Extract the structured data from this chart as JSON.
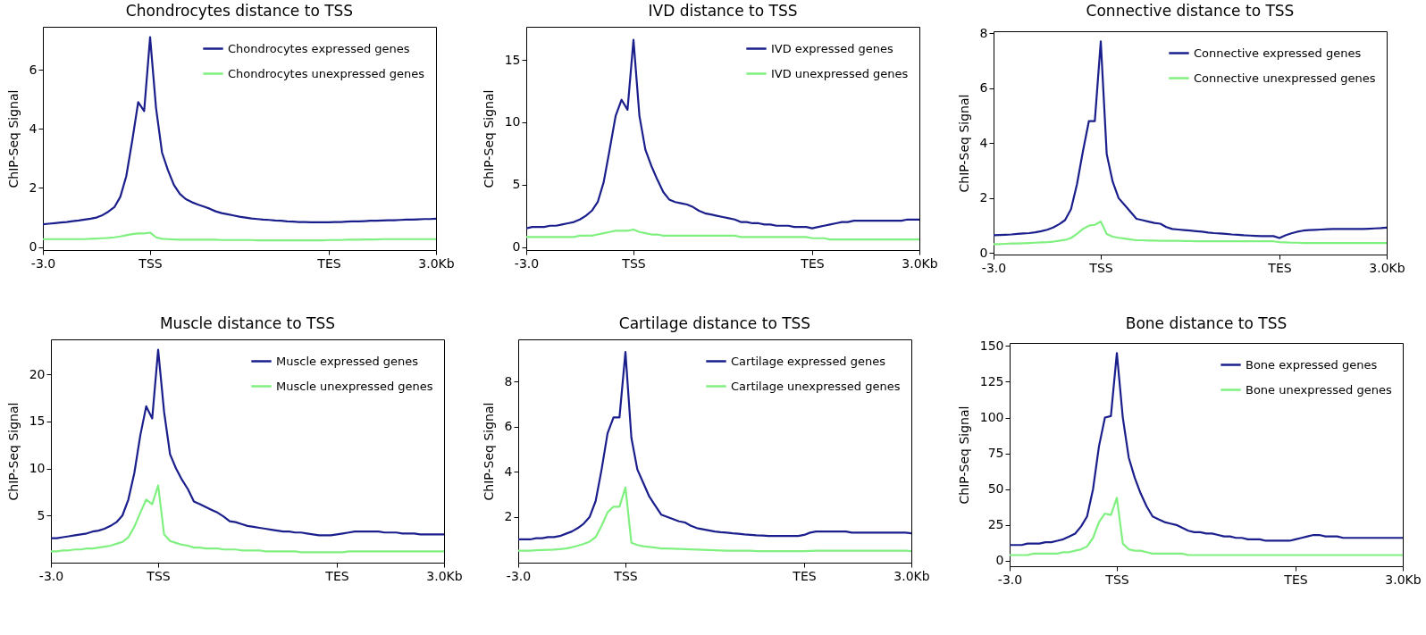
{
  "chart_data": [
    {
      "type": "line",
      "title": "Chondrocytes distance to TSS",
      "ylabel": "ChIP-Seq Signal",
      "legend": "top right",
      "ylim": [
        -0.1,
        7.45
      ],
      "yticks": [
        0,
        2,
        4,
        6
      ],
      "categories": [
        "-3.0",
        null,
        null,
        null,
        null,
        null,
        null,
        null,
        null,
        null,
        null,
        null,
        null,
        null,
        null,
        null,
        null,
        null,
        "TSS",
        null,
        null,
        null,
        null,
        null,
        null,
        null,
        null,
        null,
        null,
        null,
        null,
        null,
        null,
        null,
        null,
        null,
        null,
        null,
        null,
        null,
        null,
        null,
        null,
        null,
        null,
        null,
        null,
        null,
        "TES",
        null,
        null,
        null,
        null,
        null,
        null,
        null,
        null,
        null,
        null,
        null,
        null,
        null,
        null,
        null,
        null,
        null,
        "3.0Kb"
      ],
      "series": [
        {
          "name": "Chondrocytes expressed genes",
          "color": "#1a1f8c",
          "values": [
            0.77,
            0.79,
            0.81,
            0.83,
            0.85,
            0.88,
            0.9,
            0.93,
            0.96,
            1.0,
            1.08,
            1.2,
            1.35,
            1.7,
            2.4,
            3.6,
            4.9,
            4.6,
            7.1,
            4.7,
            3.2,
            2.6,
            2.1,
            1.8,
            1.62,
            1.52,
            1.44,
            1.37,
            1.3,
            1.21,
            1.15,
            1.11,
            1.07,
            1.03,
            1.0,
            0.97,
            0.95,
            0.93,
            0.92,
            0.9,
            0.89,
            0.87,
            0.86,
            0.85,
            0.85,
            0.84,
            0.84,
            0.84,
            0.84,
            0.85,
            0.85,
            0.86,
            0.87,
            0.87,
            0.88,
            0.89,
            0.89,
            0.9,
            0.91,
            0.91,
            0.92,
            0.93,
            0.93,
            0.94,
            0.95,
            0.95,
            0.96
          ]
        },
        {
          "name": "Chondrocytes unexpressed genes",
          "color": "#80f080",
          "values": [
            0.27,
            0.27,
            0.27,
            0.27,
            0.27,
            0.27,
            0.27,
            0.27,
            0.28,
            0.29,
            0.3,
            0.31,
            0.33,
            0.36,
            0.4,
            0.44,
            0.46,
            0.46,
            0.49,
            0.33,
            0.28,
            0.27,
            0.26,
            0.25,
            0.25,
            0.25,
            0.25,
            0.25,
            0.25,
            0.25,
            0.24,
            0.24,
            0.24,
            0.24,
            0.24,
            0.24,
            0.23,
            0.23,
            0.23,
            0.23,
            0.23,
            0.23,
            0.23,
            0.23,
            0.23,
            0.23,
            0.23,
            0.23,
            0.24,
            0.24,
            0.24,
            0.25,
            0.25,
            0.25,
            0.26,
            0.26,
            0.26,
            0.27,
            0.27,
            0.27,
            0.27,
            0.27,
            0.27,
            0.27,
            0.27,
            0.27,
            0.27
          ]
        }
      ]
    },
    {
      "type": "line",
      "title": "IVD distance to TSS",
      "ylabel": "ChIP-Seq Signal",
      "legend": "top right",
      "ylim": [
        -0.25,
        17.65
      ],
      "yticks": [
        0,
        5,
        10,
        15
      ],
      "categories": [
        "-3.0",
        null,
        null,
        null,
        null,
        null,
        null,
        null,
        null,
        null,
        null,
        null,
        null,
        null,
        null,
        null,
        null,
        null,
        "TSS",
        null,
        null,
        null,
        null,
        null,
        null,
        null,
        null,
        null,
        null,
        null,
        null,
        null,
        null,
        null,
        null,
        null,
        null,
        null,
        null,
        null,
        null,
        null,
        null,
        null,
        null,
        null,
        null,
        null,
        "TES",
        null,
        null,
        null,
        null,
        null,
        null,
        null,
        null,
        null,
        null,
        null,
        null,
        null,
        null,
        null,
        null,
        null,
        "3.0Kb"
      ],
      "series": [
        {
          "name": "IVD expressed genes",
          "color": "#1a1f8c",
          "values": [
            1.5,
            1.6,
            1.6,
            1.6,
            1.7,
            1.7,
            1.8,
            1.9,
            2.0,
            2.2,
            2.5,
            2.9,
            3.6,
            5.2,
            7.8,
            10.5,
            11.8,
            11.0,
            16.6,
            10.5,
            7.8,
            6.5,
            5.4,
            4.4,
            3.8,
            3.6,
            3.5,
            3.4,
            3.2,
            2.9,
            2.7,
            2.6,
            2.5,
            2.4,
            2.3,
            2.2,
            2.0,
            2.0,
            1.9,
            1.9,
            1.8,
            1.8,
            1.7,
            1.7,
            1.7,
            1.6,
            1.6,
            1.6,
            1.5,
            1.6,
            1.7,
            1.8,
            1.9,
            2.0,
            2.0,
            2.1,
            2.1,
            2.1,
            2.1,
            2.1,
            2.1,
            2.1,
            2.1,
            2.1,
            2.2,
            2.2,
            2.2
          ]
        },
        {
          "name": "IVD unexpressed genes",
          "color": "#80f080",
          "values": [
            0.8,
            0.8,
            0.8,
            0.8,
            0.8,
            0.8,
            0.8,
            0.8,
            0.8,
            0.9,
            0.9,
            0.9,
            1.0,
            1.1,
            1.2,
            1.3,
            1.3,
            1.3,
            1.4,
            1.2,
            1.1,
            1.0,
            1.0,
            0.9,
            0.9,
            0.9,
            0.9,
            0.9,
            0.9,
            0.9,
            0.9,
            0.9,
            0.9,
            0.9,
            0.9,
            0.9,
            0.8,
            0.8,
            0.8,
            0.8,
            0.8,
            0.8,
            0.8,
            0.8,
            0.8,
            0.8,
            0.8,
            0.8,
            0.7,
            0.7,
            0.7,
            0.6,
            0.6,
            0.6,
            0.6,
            0.6,
            0.6,
            0.6,
            0.6,
            0.6,
            0.6,
            0.6,
            0.6,
            0.6,
            0.6,
            0.6,
            0.6
          ]
        }
      ]
    },
    {
      "type": "line",
      "title": "Connective distance to TSS",
      "ylabel": "ChIP-Seq Signal",
      "legend": "top right",
      "ylim": [
        -0.05,
        8.07
      ],
      "yticks": [
        0,
        2,
        4,
        6,
        8
      ],
      "categories": [
        "-3.0",
        null,
        null,
        null,
        null,
        null,
        null,
        null,
        null,
        null,
        null,
        null,
        null,
        null,
        null,
        null,
        null,
        null,
        "TSS",
        null,
        null,
        null,
        null,
        null,
        null,
        null,
        null,
        null,
        null,
        null,
        null,
        null,
        null,
        null,
        null,
        null,
        null,
        null,
        null,
        null,
        null,
        null,
        null,
        null,
        null,
        null,
        null,
        null,
        "TES",
        null,
        null,
        null,
        null,
        null,
        null,
        null,
        null,
        null,
        null,
        null,
        null,
        null,
        null,
        null,
        null,
        null,
        "3.0Kb"
      ],
      "series": [
        {
          "name": "Connective expressed genes",
          "color": "#1a1f8c",
          "values": [
            0.65,
            0.66,
            0.67,
            0.68,
            0.7,
            0.72,
            0.73,
            0.76,
            0.8,
            0.85,
            0.93,
            1.05,
            1.2,
            1.6,
            2.5,
            3.7,
            4.8,
            4.8,
            7.7,
            3.6,
            2.6,
            2.0,
            1.75,
            1.5,
            1.25,
            1.2,
            1.15,
            1.1,
            1.07,
            0.95,
            0.88,
            0.86,
            0.84,
            0.82,
            0.8,
            0.78,
            0.75,
            0.73,
            0.72,
            0.7,
            0.68,
            0.67,
            0.65,
            0.64,
            0.63,
            0.62,
            0.62,
            0.62,
            0.55,
            0.65,
            0.72,
            0.78,
            0.82,
            0.84,
            0.85,
            0.86,
            0.87,
            0.88,
            0.88,
            0.88,
            0.88,
            0.88,
            0.88,
            0.89,
            0.9,
            0.91,
            0.93
          ]
        },
        {
          "name": "Connective unexpressed genes",
          "color": "#80f080",
          "values": [
            0.33,
            0.33,
            0.34,
            0.35,
            0.35,
            0.36,
            0.37,
            0.38,
            0.39,
            0.4,
            0.42,
            0.45,
            0.48,
            0.55,
            0.7,
            0.88,
            1.0,
            1.03,
            1.15,
            0.7,
            0.6,
            0.56,
            0.53,
            0.5,
            0.47,
            0.47,
            0.46,
            0.46,
            0.45,
            0.45,
            0.45,
            0.45,
            0.44,
            0.44,
            0.43,
            0.43,
            0.43,
            0.43,
            0.43,
            0.43,
            0.43,
            0.43,
            0.43,
            0.43,
            0.43,
            0.43,
            0.43,
            0.43,
            0.4,
            0.39,
            0.38,
            0.38,
            0.37,
            0.37,
            0.37,
            0.37,
            0.37,
            0.37,
            0.37,
            0.37,
            0.37,
            0.37,
            0.37,
            0.37,
            0.37,
            0.37,
            0.37
          ]
        }
      ]
    },
    {
      "type": "line",
      "title": "Muscle distance to TSS",
      "ylabel": "ChIP-Seq Signal",
      "legend": "top right",
      "ylim": [
        0,
        23.7
      ],
      "yticks": [
        5,
        10,
        15,
        20
      ],
      "categories": [
        "-3.0",
        null,
        null,
        null,
        null,
        null,
        null,
        null,
        null,
        null,
        null,
        null,
        null,
        null,
        null,
        null,
        null,
        null,
        "TSS",
        null,
        null,
        null,
        null,
        null,
        null,
        null,
        null,
        null,
        null,
        null,
        null,
        null,
        null,
        null,
        null,
        null,
        null,
        null,
        null,
        null,
        null,
        null,
        null,
        null,
        null,
        null,
        null,
        null,
        "TES",
        null,
        null,
        null,
        null,
        null,
        null,
        null,
        null,
        null,
        null,
        null,
        null,
        null,
        null,
        null,
        null,
        null,
        "3.0Kb"
      ],
      "series": [
        {
          "name": "Muscle expressed genes",
          "color": "#1a1f8c",
          "values": [
            2.6,
            2.6,
            2.7,
            2.8,
            2.9,
            3.0,
            3.1,
            3.3,
            3.4,
            3.6,
            3.9,
            4.3,
            5.0,
            6.7,
            9.5,
            13.5,
            16.6,
            15.3,
            22.6,
            16.0,
            11.5,
            10.0,
            8.8,
            7.8,
            6.5,
            6.2,
            5.9,
            5.6,
            5.3,
            4.9,
            4.4,
            4.3,
            4.1,
            3.9,
            3.8,
            3.7,
            3.6,
            3.5,
            3.4,
            3.3,
            3.3,
            3.2,
            3.2,
            3.1,
            3.0,
            2.9,
            2.9,
            2.9,
            3.0,
            3.1,
            3.2,
            3.3,
            3.3,
            3.3,
            3.3,
            3.3,
            3.2,
            3.2,
            3.2,
            3.1,
            3.1,
            3.1,
            3.0,
            3.0,
            3.0,
            3.0,
            3.0
          ]
        },
        {
          "name": "Muscle unexpressed genes",
          "color": "#80f080",
          "values": [
            1.2,
            1.2,
            1.3,
            1.3,
            1.4,
            1.4,
            1.5,
            1.5,
            1.6,
            1.7,
            1.8,
            2.0,
            2.2,
            2.7,
            3.8,
            5.3,
            6.7,
            6.2,
            8.2,
            3.0,
            2.3,
            2.1,
            1.9,
            1.8,
            1.6,
            1.6,
            1.5,
            1.5,
            1.5,
            1.4,
            1.4,
            1.4,
            1.3,
            1.3,
            1.3,
            1.3,
            1.2,
            1.2,
            1.2,
            1.2,
            1.2,
            1.2,
            1.1,
            1.1,
            1.1,
            1.1,
            1.1,
            1.1,
            1.1,
            1.1,
            1.2,
            1.2,
            1.2,
            1.2,
            1.2,
            1.2,
            1.2,
            1.2,
            1.2,
            1.2,
            1.2,
            1.2,
            1.2,
            1.2,
            1.2,
            1.2,
            1.2
          ]
        }
      ]
    },
    {
      "type": "line",
      "title": "Cartilage distance to TSS",
      "ylabel": "ChIP-Seq Signal",
      "legend": "top right",
      "ylim": [
        -0.03,
        9.86
      ],
      "yticks": [
        2,
        4,
        6,
        8
      ],
      "categories": [
        "-3.0",
        null,
        null,
        null,
        null,
        null,
        null,
        null,
        null,
        null,
        null,
        null,
        null,
        null,
        null,
        null,
        null,
        null,
        "TSS",
        null,
        null,
        null,
        null,
        null,
        null,
        null,
        null,
        null,
        null,
        null,
        null,
        null,
        null,
        null,
        null,
        null,
        null,
        null,
        null,
        null,
        null,
        null,
        null,
        null,
        null,
        null,
        null,
        null,
        "TES",
        null,
        null,
        null,
        null,
        null,
        null,
        null,
        null,
        null,
        null,
        null,
        null,
        null,
        null,
        null,
        null,
        null,
        "3.0Kb"
      ],
      "series": [
        {
          "name": "Cartilage expressed genes",
          "color": "#1a1f8c",
          "values": [
            1.0,
            1.0,
            1.0,
            1.05,
            1.05,
            1.1,
            1.1,
            1.15,
            1.25,
            1.35,
            1.5,
            1.7,
            2.0,
            2.7,
            4.1,
            5.7,
            6.4,
            6.4,
            9.3,
            5.5,
            4.1,
            3.5,
            2.9,
            2.5,
            2.1,
            2.0,
            1.9,
            1.8,
            1.75,
            1.6,
            1.5,
            1.45,
            1.4,
            1.35,
            1.32,
            1.3,
            1.27,
            1.25,
            1.22,
            1.2,
            1.18,
            1.17,
            1.15,
            1.15,
            1.15,
            1.15,
            1.15,
            1.15,
            1.2,
            1.3,
            1.35,
            1.35,
            1.35,
            1.35,
            1.35,
            1.35,
            1.3,
            1.3,
            1.3,
            1.3,
            1.3,
            1.3,
            1.3,
            1.3,
            1.3,
            1.3,
            1.27
          ]
        },
        {
          "name": "Cartilage unexpressed genes",
          "color": "#80f080",
          "values": [
            0.5,
            0.5,
            0.5,
            0.52,
            0.53,
            0.54,
            0.55,
            0.57,
            0.6,
            0.65,
            0.72,
            0.8,
            0.9,
            1.1,
            1.6,
            2.2,
            2.45,
            2.45,
            3.3,
            0.85,
            0.75,
            0.7,
            0.67,
            0.64,
            0.6,
            0.6,
            0.59,
            0.58,
            0.57,
            0.56,
            0.55,
            0.54,
            0.53,
            0.52,
            0.51,
            0.5,
            0.5,
            0.5,
            0.5,
            0.5,
            0.48,
            0.48,
            0.48,
            0.48,
            0.48,
            0.48,
            0.48,
            0.48,
            0.48,
            0.49,
            0.5,
            0.5,
            0.5,
            0.5,
            0.5,
            0.5,
            0.5,
            0.5,
            0.5,
            0.5,
            0.5,
            0.5,
            0.5,
            0.5,
            0.5,
            0.5,
            0.48
          ]
        }
      ]
    },
    {
      "type": "line",
      "title": "Bone distance to TSS",
      "ylabel": "ChIP-Seq Signal",
      "legend": "top right",
      "ylim": [
        -3.8,
        152.1
      ],
      "yticks": [
        0,
        25,
        50,
        75,
        100,
        125,
        150
      ],
      "categories": [
        "-3.0",
        null,
        null,
        null,
        null,
        null,
        null,
        null,
        null,
        null,
        null,
        null,
        null,
        null,
        null,
        null,
        null,
        null,
        "TSS",
        null,
        null,
        null,
        null,
        null,
        null,
        null,
        null,
        null,
        null,
        null,
        null,
        null,
        null,
        null,
        null,
        null,
        null,
        null,
        null,
        null,
        null,
        null,
        null,
        null,
        null,
        null,
        null,
        null,
        "TES",
        null,
        null,
        null,
        null,
        null,
        null,
        null,
        null,
        null,
        null,
        null,
        null,
        null,
        null,
        null,
        null,
        null,
        "3.0Kb"
      ],
      "series": [
        {
          "name": "Bone expressed genes",
          "color": "#1a1f8c",
          "values": [
            11,
            11,
            11,
            12,
            12,
            12,
            13,
            13,
            14,
            15,
            17,
            19,
            24,
            31,
            50,
            80,
            100,
            101,
            145,
            100,
            72,
            58,
            47,
            38,
            31,
            29,
            27,
            26,
            25,
            23,
            21,
            20,
            20,
            19,
            19,
            18,
            17,
            17,
            16,
            16,
            15,
            15,
            15,
            14,
            14,
            14,
            14,
            14,
            15,
            16,
            17,
            18,
            18,
            17,
            17,
            17,
            16,
            16,
            16,
            16,
            16,
            16,
            16,
            16,
            16,
            16,
            16
          ]
        },
        {
          "name": "Bone unexpressed genes",
          "color": "#80f080",
          "values": [
            4,
            4,
            4,
            4,
            5,
            5,
            5,
            5,
            5,
            6,
            6,
            7,
            8,
            10,
            16,
            27,
            33,
            32,
            44,
            12,
            8,
            7,
            7,
            6,
            5,
            5,
            5,
            5,
            5,
            5,
            4,
            4,
            4,
            4,
            4,
            4,
            4,
            4,
            4,
            4,
            4,
            4,
            4,
            4,
            4,
            4,
            4,
            4,
            4,
            4,
            4,
            4,
            4,
            4,
            4,
            4,
            4,
            4,
            4,
            4,
            4,
            4,
            4,
            4,
            4,
            4,
            4
          ]
        }
      ]
    }
  ]
}
